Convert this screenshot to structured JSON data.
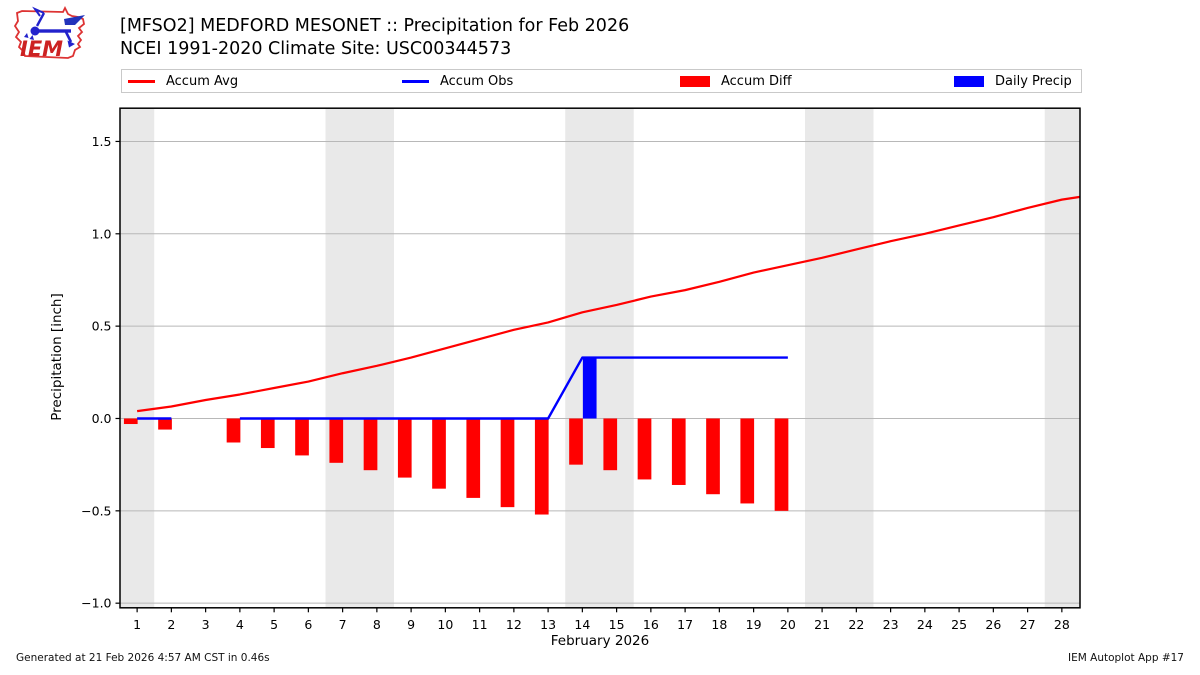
{
  "header": {
    "line1": "[MFSO2] MEDFORD MESONET :: Precipitation for Feb 2026",
    "line2": "NCEI 1991-2020 Climate Site: USC00344573"
  },
  "logo": {
    "text": "IEM"
  },
  "legend": {
    "items": [
      {
        "key": "accum-avg",
        "label": "Accum Avg",
        "type": "line",
        "color": "#ff0000"
      },
      {
        "key": "accum-obs",
        "label": "Accum Obs",
        "type": "line",
        "color": "#0000ff"
      },
      {
        "key": "accum-diff",
        "label": "Accum Diff",
        "type": "rect",
        "color": "#ff0000"
      },
      {
        "key": "daily-precip",
        "label": "Daily Precip",
        "type": "rect",
        "color": "#0000ff"
      }
    ],
    "item_offsets": [
      6,
      280,
      558,
      832
    ]
  },
  "colors": {
    "band": "#e9e9e9",
    "grid": "#b8b8b8",
    "spine": "#000000",
    "red": "#ff0000",
    "blue": "#0000ff"
  },
  "chart_data": {
    "type": "line+bar",
    "title": "[MFSO2] MEDFORD MESONET :: Precipitation for Feb 2026",
    "subtitle": "NCEI 1991-2020 Climate Site: USC00344573",
    "xlabel": "February 2026",
    "ylabel": "Precipitation [inch]",
    "xlim": [
      0.5,
      28.53
    ],
    "ylim": [
      -1.025,
      1.68
    ],
    "x_ticks": [
      1,
      2,
      3,
      4,
      5,
      6,
      7,
      8,
      9,
      10,
      11,
      12,
      13,
      14,
      15,
      16,
      17,
      18,
      19,
      20,
      21,
      22,
      23,
      24,
      25,
      26,
      27,
      28
    ],
    "y_ticks": [
      {
        "v": 1.5,
        "label": "1.5"
      },
      {
        "v": 1.0,
        "label": "1.0"
      },
      {
        "v": 0.5,
        "label": "0.5"
      },
      {
        "v": 0.0,
        "label": "0.0"
      },
      {
        "v": -0.5,
        "label": "−0.5"
      },
      {
        "v": -1.0,
        "label": "−1.0"
      }
    ],
    "weekend_bands": [
      [
        0.5,
        1.5
      ],
      [
        6.5,
        8.5
      ],
      [
        13.5,
        15.5
      ],
      [
        20.5,
        22.5
      ],
      [
        27.5,
        28.53
      ]
    ],
    "missing_days": [
      3
    ],
    "accum_avg": {
      "name": "Accum Avg",
      "color": "#ff0000",
      "points": [
        [
          1,
          0.04
        ],
        [
          2,
          0.065
        ],
        [
          3,
          0.1
        ],
        [
          4,
          0.13
        ],
        [
          5,
          0.165
        ],
        [
          6,
          0.2
        ],
        [
          7,
          0.245
        ],
        [
          8,
          0.285
        ],
        [
          9,
          0.33
        ],
        [
          10,
          0.38
        ],
        [
          11,
          0.43
        ],
        [
          12,
          0.48
        ],
        [
          13,
          0.52
        ],
        [
          14,
          0.575
        ],
        [
          15,
          0.615
        ],
        [
          16,
          0.66
        ],
        [
          17,
          0.695
        ],
        [
          18,
          0.74
        ],
        [
          19,
          0.79
        ],
        [
          20,
          0.83
        ],
        [
          21,
          0.87
        ],
        [
          22,
          0.915
        ],
        [
          23,
          0.96
        ],
        [
          24,
          1.0
        ],
        [
          25,
          1.045
        ],
        [
          26,
          1.09
        ],
        [
          27,
          1.14
        ],
        [
          28,
          1.185
        ],
        [
          28.53,
          1.2
        ]
      ]
    },
    "accum_obs": {
      "name": "Accum Obs",
      "color": "#0000ff",
      "segments": [
        [
          [
            1,
            0
          ],
          [
            2,
            0
          ]
        ],
        [
          [
            4,
            0
          ],
          [
            13,
            0
          ],
          [
            14,
            0.33
          ],
          [
            20,
            0.33
          ]
        ]
      ]
    },
    "accum_diff": {
      "name": "Accum Diff",
      "color": "#ff0000",
      "days": [
        1,
        2,
        4,
        5,
        6,
        7,
        8,
        9,
        10,
        11,
        12,
        13,
        14,
        15,
        16,
        17,
        18,
        19,
        20
      ],
      "values": [
        -0.03,
        -0.06,
        -0.13,
        -0.16,
        -0.2,
        -0.24,
        -0.28,
        -0.32,
        -0.38,
        -0.43,
        -0.48,
        -0.52,
        -0.25,
        -0.28,
        -0.33,
        -0.36,
        -0.41,
        -0.46,
        -0.5
      ]
    },
    "daily_precip": {
      "name": "Daily Precip",
      "color": "#0000ff",
      "days": [
        14
      ],
      "values": [
        0.33
      ]
    }
  },
  "footer": {
    "left": "Generated at 21 Feb 2026 4:57 AM CST in 0.46s",
    "right": "IEM Autoplot App #17"
  }
}
